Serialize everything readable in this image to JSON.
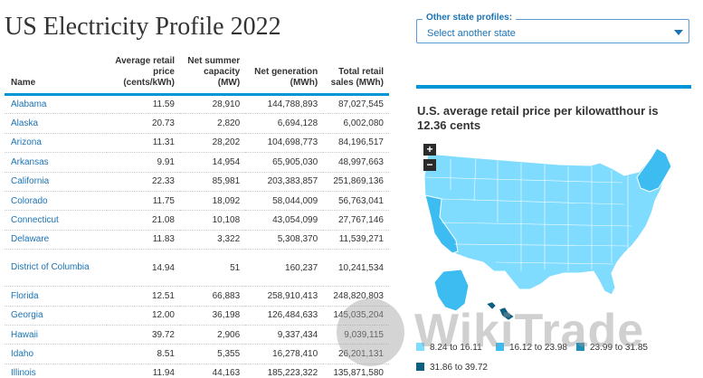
{
  "page": {
    "title": "US Electricity Profile 2022"
  },
  "table": {
    "headers": {
      "name": "Name",
      "price": [
        "Average retail",
        "price",
        "(cents/kWh)"
      ],
      "capacity": [
        "Net summer",
        "capacity",
        "(MW)"
      ],
      "generation": [
        "Net generation",
        "(MWh)"
      ],
      "sales": [
        "Total retail",
        "sales (MWh)"
      ]
    },
    "rows": [
      {
        "name": "Alabama",
        "price": "11.59",
        "capacity": "28,910",
        "generation": "144,788,893",
        "sales": "87,027,545"
      },
      {
        "name": "Alaska",
        "price": "20.73",
        "capacity": "2,820",
        "generation": "6,694,128",
        "sales": "6,002,080"
      },
      {
        "name": "Arizona",
        "price": "11.31",
        "capacity": "28,202",
        "generation": "104,698,773",
        "sales": "84,196,517"
      },
      {
        "name": "Arkansas",
        "price": "9.91",
        "capacity": "14,954",
        "generation": "65,905,030",
        "sales": "48,997,663"
      },
      {
        "name": "California",
        "price": "22.33",
        "capacity": "85,981",
        "generation": "203,383,857",
        "sales": "251,869,136"
      },
      {
        "name": "Colorado",
        "price": "11.75",
        "capacity": "18,092",
        "generation": "58,044,009",
        "sales": "56,763,041"
      },
      {
        "name": "Connecticut",
        "price": "21.08",
        "capacity": "10,108",
        "generation": "43,054,099",
        "sales": "27,767,146"
      },
      {
        "name": "Delaware",
        "price": "11.83",
        "capacity": "3,322",
        "generation": "5,308,370",
        "sales": "11,539,271"
      },
      {
        "name": "District of Columbia",
        "price": "14.94",
        "capacity": "51",
        "generation": "160,237",
        "sales": "10,241,534"
      },
      {
        "name": "Florida",
        "price": "12.51",
        "capacity": "66,883",
        "generation": "258,910,413",
        "sales": "248,820,803"
      },
      {
        "name": "Georgia",
        "price": "12.00",
        "capacity": "36,198",
        "generation": "126,484,633",
        "sales": "145,035,204"
      },
      {
        "name": "Hawaii",
        "price": "39.72",
        "capacity": "2,906",
        "generation": "9,337,434",
        "sales": "9,039,115"
      },
      {
        "name": "Idaho",
        "price": "8.51",
        "capacity": "5,355",
        "generation": "16,278,410",
        "sales": "26,201,131"
      },
      {
        "name": "Illinois",
        "price": "11.94",
        "capacity": "44,163",
        "generation": "185,223,322",
        "sales": "135,871,580"
      }
    ]
  },
  "state_select": {
    "legend": "Other state profiles:",
    "value": "Select another state"
  },
  "map": {
    "title": "U.S. average retail price per kilowatthour is 12.36 cents",
    "zoom_in": "+",
    "zoom_out": "−",
    "legend": [
      {
        "label": "8.24 to 16.11",
        "color": "#7fdcff"
      },
      {
        "label": "16.12 to 23.98",
        "color": "#3cbcf0"
      },
      {
        "label": "23.99 to 31.85",
        "color": "#1f8fb7"
      },
      {
        "label": "31.86 to 39.72",
        "color": "#0b5f80"
      }
    ]
  },
  "watermark": {
    "text": "WikiTrade"
  }
}
